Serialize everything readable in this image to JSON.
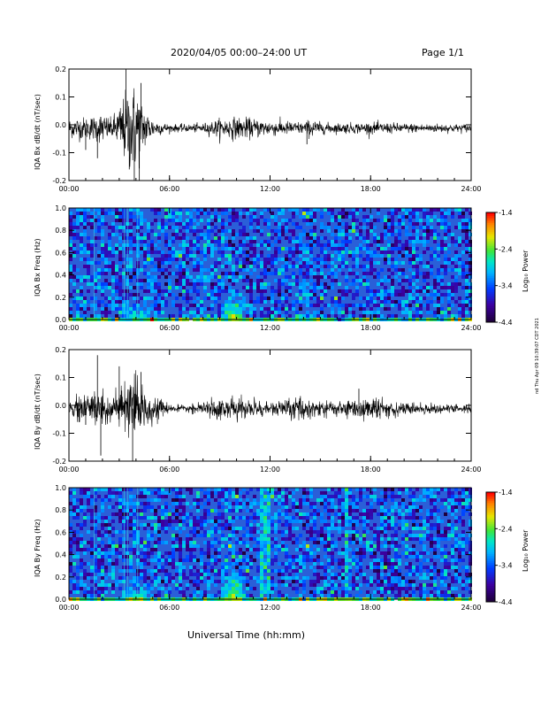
{
  "header": {
    "title": "2020/04/05  00:00–24:00 UT",
    "page": "Page 1/1"
  },
  "footer": {
    "xlabel": "Universal Time (hh:mm)"
  },
  "stamp": "nd Thu Apr 09 10:39:07 CDT 2021",
  "x_ticks": [
    "00:00",
    "06:00",
    "12:00",
    "18:00",
    "24:00"
  ],
  "colorbar": {
    "label": "Log₁₀ Power",
    "ticks": [
      "-1.4",
      "-2.4",
      "-3.4",
      "-4.4"
    ],
    "range": [
      -4.4,
      -1.4
    ]
  },
  "colors": {
    "spec_bg": "#2a5fd8",
    "trace": "#000000"
  },
  "chart_data": [
    {
      "type": "line",
      "title": "",
      "xlabel": "",
      "ylabel": "IQA Bx dB/dt (nT/sec)",
      "xlim": [
        0,
        24
      ],
      "ylim": [
        -0.2,
        0.2
      ],
      "y_ticks": [
        "0.2",
        "0.1",
        "0.0",
        "-0.1",
        "-0.2"
      ],
      "envelope": {
        "x": [
          0,
          0.5,
          1,
          1.5,
          2,
          2.5,
          3,
          3.5,
          4,
          4.5,
          5,
          5.5,
          6,
          7,
          8,
          9,
          10,
          11,
          12,
          13,
          14,
          14.5,
          15,
          16,
          17,
          18,
          19,
          20,
          21,
          22,
          23,
          24
        ],
        "amplitude": [
          0.03,
          0.035,
          0.035,
          0.04,
          0.05,
          0.03,
          0.07,
          0.13,
          0.14,
          0.07,
          0.03,
          0.02,
          0.012,
          0.012,
          0.015,
          0.03,
          0.035,
          0.03,
          0.025,
          0.022,
          0.02,
          0.03,
          0.018,
          0.016,
          0.017,
          0.018,
          0.017,
          0.015,
          0.014,
          0.014,
          0.013,
          0.013
        ]
      },
      "spikes": [
        {
          "x": 1.0,
          "y": -0.09
        },
        {
          "x": 1.7,
          "y": -0.12
        },
        {
          "x": 3.4,
          "y": 0.2
        },
        {
          "x": 3.6,
          "y": -0.16
        },
        {
          "x": 3.9,
          "y": -0.2
        },
        {
          "x": 4.2,
          "y": -0.2
        },
        {
          "x": 4.3,
          "y": 0.15
        },
        {
          "x": 14.2,
          "y": -0.07
        }
      ]
    },
    {
      "type": "heatmap",
      "xlabel": "",
      "ylabel": "IQA Bx Freq (Hz)",
      "xlim": [
        0,
        24
      ],
      "ylim": [
        0,
        1.0
      ],
      "y_ticks": [
        "1.0",
        "0.8",
        "0.6",
        "0.4",
        "0.2",
        "0.0"
      ],
      "zlim": [
        -4.4,
        -1.4
      ],
      "features": [
        {
          "x": 9.7,
          "fmax": 0.25,
          "width_h": 1.6,
          "level": -2.2
        },
        {
          "x": 4.0,
          "fmax": 0.15,
          "width_h": 2.0,
          "level": -2.6
        },
        {
          "x": 14.0,
          "fmax": 0.35,
          "width_h": 0.4,
          "level": -3.3
        }
      ],
      "vertical_lines": [
        1.5,
        3.3,
        3.5,
        4.1
      ]
    },
    {
      "type": "line",
      "title": "",
      "xlabel": "",
      "ylabel": "IQA By dB/dt (nT/sec)",
      "xlim": [
        0,
        24
      ],
      "ylim": [
        -0.2,
        0.2
      ],
      "y_ticks": [
        "0.2",
        "0.1",
        "0.0",
        "-0.1",
        "-0.2"
      ],
      "envelope": {
        "x": [
          0,
          0.5,
          1,
          1.5,
          2,
          2.5,
          3,
          3.5,
          4,
          4.5,
          5,
          5.5,
          6,
          7,
          8,
          9,
          10,
          11,
          12,
          13,
          14,
          15,
          16,
          17,
          18,
          19,
          20,
          21,
          22,
          23,
          24
        ],
        "amplitude": [
          0.03,
          0.04,
          0.045,
          0.06,
          0.06,
          0.05,
          0.07,
          0.08,
          0.09,
          0.06,
          0.04,
          0.03,
          0.012,
          0.01,
          0.02,
          0.035,
          0.035,
          0.03,
          0.02,
          0.03,
          0.035,
          0.03,
          0.025,
          0.03,
          0.035,
          0.03,
          0.02,
          0.015,
          0.015,
          0.015,
          0.015
        ]
      },
      "spikes": [
        {
          "x": 0.6,
          "y": -0.06
        },
        {
          "x": 1.0,
          "y": -0.07
        },
        {
          "x": 1.7,
          "y": 0.18
        },
        {
          "x": 1.9,
          "y": -0.18
        },
        {
          "x": 3.0,
          "y": 0.14
        },
        {
          "x": 3.8,
          "y": -0.2
        },
        {
          "x": 4.3,
          "y": 0.12
        },
        {
          "x": 14.0,
          "y": -0.05
        },
        {
          "x": 17.3,
          "y": 0.06
        }
      ]
    },
    {
      "type": "heatmap",
      "xlabel": "",
      "ylabel": "IQA By Freq (Hz)",
      "xlim": [
        0,
        24
      ],
      "ylim": [
        0,
        1.0
      ],
      "y_ticks": [
        "1.0",
        "0.8",
        "0.6",
        "0.4",
        "0.2",
        "0.0"
      ],
      "zlim": [
        -4.4,
        -1.4
      ],
      "features": [
        {
          "x": 9.7,
          "fmax": 0.3,
          "width_h": 1.6,
          "level": -2.2
        },
        {
          "x": 4.0,
          "fmax": 0.15,
          "width_h": 2.0,
          "level": -2.6
        },
        {
          "x": 14.0,
          "fmax": 0.4,
          "width_h": 0.4,
          "level": -3.2
        }
      ],
      "bands": [
        {
          "x0": 11.3,
          "x1": 11.9
        },
        {
          "x0": 16.3,
          "x1": 16.5
        }
      ],
      "vertical_lines": [
        1.5,
        3.3,
        3.5,
        4.1
      ]
    }
  ]
}
